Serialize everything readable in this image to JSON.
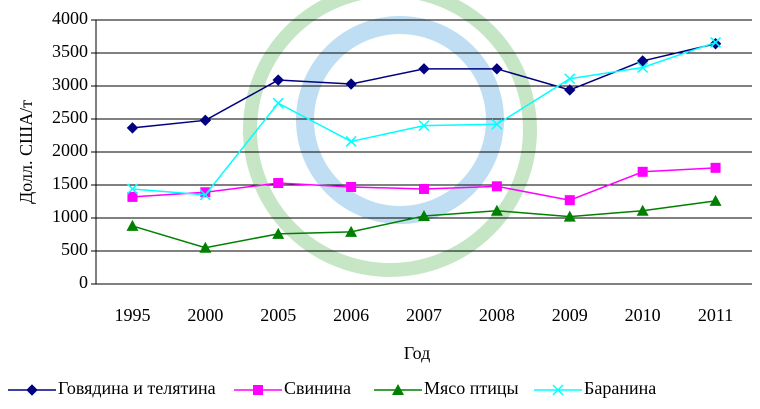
{
  "chart_data": {
    "type": "line",
    "xlabel": "Год",
    "ylabel": "Долл. США/т",
    "categories": [
      "1995",
      "2000",
      "2005",
      "2006",
      "2007",
      "2008",
      "2009",
      "2010",
      "2011"
    ],
    "series": [
      {
        "name": "Говядина и телятина",
        "color": "#000080",
        "marker": "diamond",
        "values": [
          2365,
          2480,
          3090,
          3030,
          3260,
          3260,
          2940,
          3380,
          3640
        ]
      },
      {
        "name": "Свинина",
        "color": "#ff00ff",
        "marker": "square",
        "values": [
          1320,
          1390,
          1530,
          1470,
          1440,
          1480,
          1270,
          1700,
          1760
        ]
      },
      {
        "name": "Мясо птицы",
        "color": "#008000",
        "marker": "triangle",
        "values": [
          880,
          550,
          760,
          790,
          1030,
          1110,
          1020,
          1110,
          1260
        ]
      },
      {
        "name": "Баранина",
        "color": "#00ffff",
        "marker": "x",
        "values": [
          1440,
          1350,
          2740,
          2160,
          2400,
          2420,
          3110,
          3280,
          3660
        ]
      }
    ],
    "ylim": [
      0,
      4000
    ],
    "yticks": [
      0,
      500,
      1000,
      1500,
      2000,
      2500,
      3000,
      3500,
      4000
    ],
    "grid": true
  }
}
